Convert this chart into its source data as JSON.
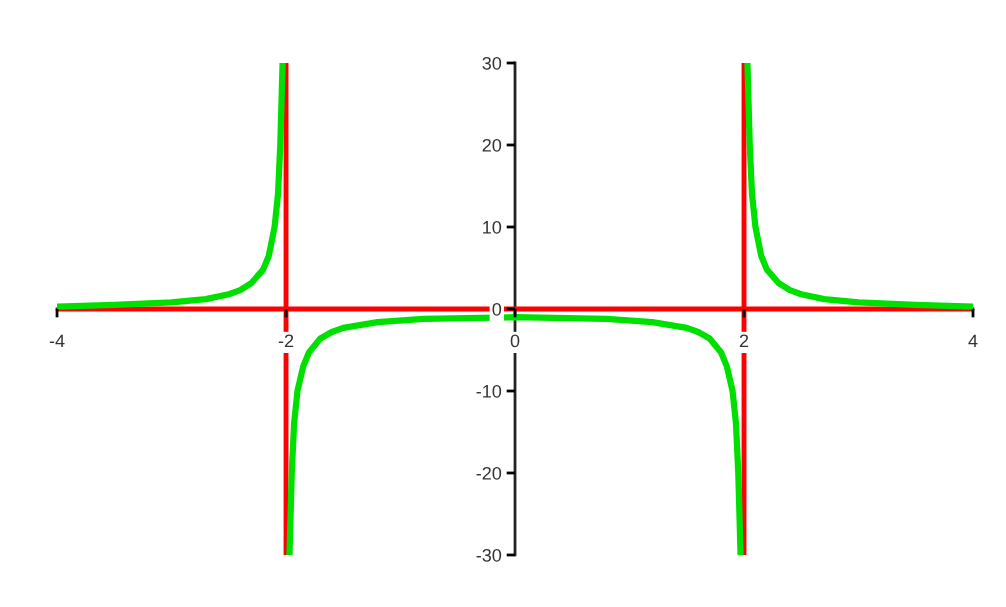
{
  "chart_data": {
    "type": "line",
    "x": [
      -4,
      -3.5,
      -3,
      -2.7,
      -2.5,
      -2.4,
      -2.3,
      -2.2,
      -2.15,
      -2.1,
      -2.07,
      -2.05,
      -2.03,
      -2,
      -1.97,
      -1.95,
      -1.93,
      -1.9,
      -1.85,
      -1.8,
      -1.7,
      -1.6,
      -1.5,
      -1.2,
      -0.8,
      0,
      0.8,
      1.2,
      1.5,
      1.6,
      1.7,
      1.8,
      1.85,
      1.9,
      1.93,
      1.95,
      1.97,
      2,
      2.03,
      2.05,
      2.07,
      2.1,
      2.15,
      2.2,
      2.3,
      2.4,
      2.5,
      2.7,
      3,
      3.5,
      4
    ],
    "series": [
      {
        "color": "#00e000",
        "values": [
          0.3,
          0.5,
          0.8,
          1.2,
          1.8,
          2.3,
          3.2,
          4.8,
          6.5,
          10,
          14,
          20,
          30,
          null,
          -30,
          -20,
          -14,
          -10,
          -7,
          -5.3,
          -3.6,
          -2.8,
          -2.3,
          -1.6,
          -1.2,
          -1,
          -1.2,
          -1.6,
          -2.3,
          -2.8,
          -3.6,
          -5.3,
          -7,
          -10,
          -14,
          -20,
          -30,
          null,
          30,
          20,
          14,
          10,
          6.5,
          4.8,
          3.2,
          2.3,
          1.8,
          1.2,
          0.8,
          0.5,
          0.3
        ]
      }
    ],
    "xlim": [
      -4,
      4
    ],
    "ylim": [
      -30,
      30
    ],
    "xticks": [
      -4,
      -2,
      0,
      2,
      4
    ],
    "yticks": [
      -30,
      -20,
      -10,
      0,
      10,
      20,
      30
    ],
    "ref_lines": [
      {
        "axis": "x",
        "value": -2,
        "color": "#ff0000"
      },
      {
        "axis": "x",
        "value": 2,
        "color": "#ff0000"
      },
      {
        "axis": "y",
        "value": 0,
        "color": "#ff0000"
      }
    ],
    "grid": false,
    "marker": "none",
    "line_style": "solid"
  }
}
